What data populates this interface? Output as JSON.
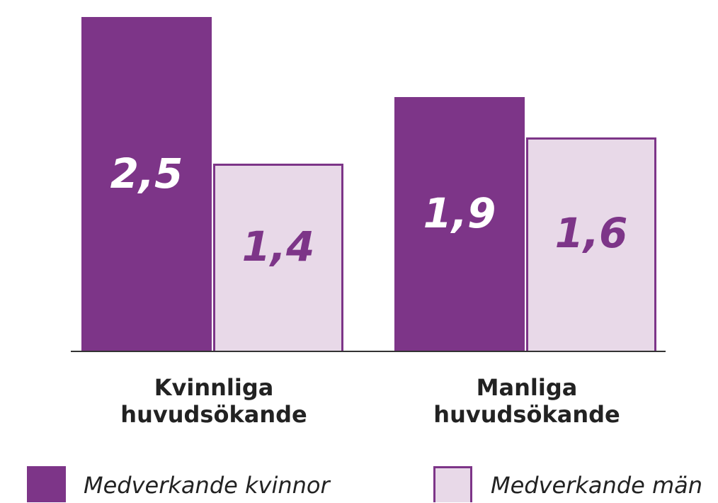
{
  "chart_data": {
    "type": "bar",
    "categories": [
      "Kvinnliga huvudsökande",
      "Manliga huvudsökande"
    ],
    "series": [
      {
        "name": "Medverkande kvinnor",
        "color": "#7d3588",
        "values": [
          2.5,
          1.9
        ],
        "value_labels": [
          "2,5",
          "1,9"
        ]
      },
      {
        "name": "Medverkande män",
        "color": "#e8d9e8",
        "values": [
          1.4,
          1.6
        ],
        "value_labels": [
          "1,4",
          "1,6"
        ]
      }
    ]
  }
}
